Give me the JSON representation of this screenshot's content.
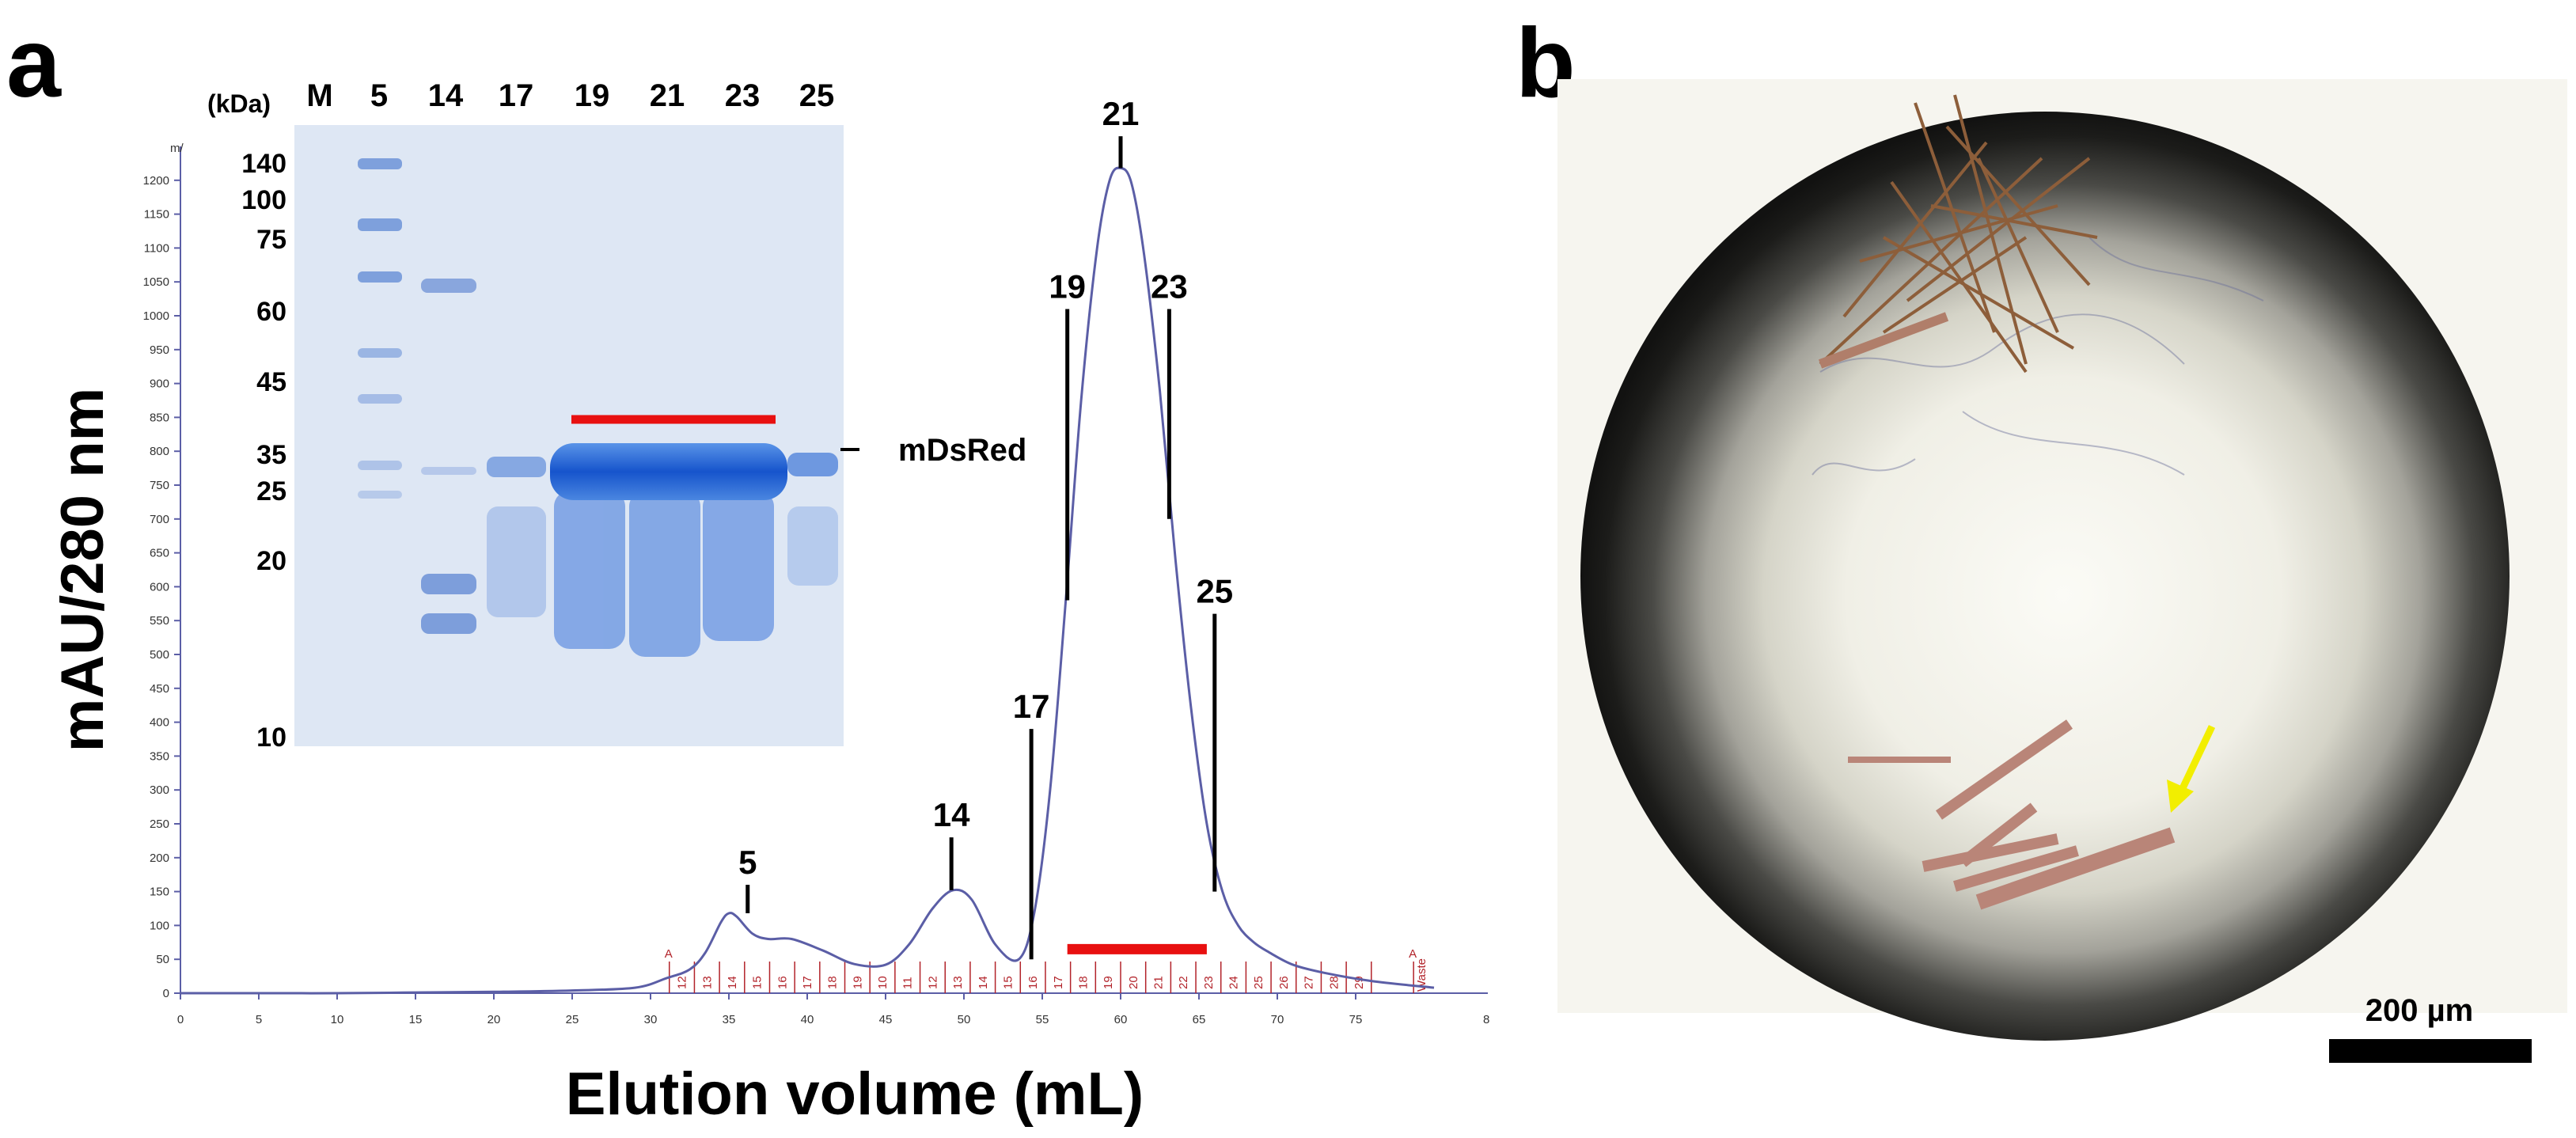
{
  "panels": {
    "a": {
      "letter": "a"
    },
    "b": {
      "letter": "b"
    }
  },
  "colors": {
    "trace": "#5b5ea6",
    "fraction_marks": "#b2232a",
    "red_bar": "#e81010",
    "gel_background": "#d9e3f1",
    "band": "#1e5fd0",
    "arrow": "#f2ee00"
  },
  "chart_data": {
    "type": "line",
    "title": "",
    "xlabel": "Elution volume (mL)",
    "ylabel": "mAU/280 nm",
    "x_axis_tail_label": "8",
    "xlim": [
      0,
      80
    ],
    "ylim": [
      0,
      1250
    ],
    "xticks": [
      0,
      5,
      10,
      15,
      20,
      25,
      30,
      35,
      40,
      45,
      50,
      55,
      60,
      65,
      70,
      75
    ],
    "yticks": [
      0,
      50,
      100,
      150,
      200,
      250,
      300,
      350,
      400,
      450,
      500,
      550,
      600,
      650,
      700,
      750,
      800,
      850,
      900,
      950,
      1000,
      1050,
      1100,
      1150,
      1200
    ],
    "y_axis_top_label": "m/",
    "series": [
      {
        "x": [
          0,
          5,
          10,
          15,
          20,
          25,
          29,
          31,
          32.5,
          33.5,
          34.5,
          35,
          35.5,
          36.5,
          37.5,
          39,
          41,
          43,
          45,
          46.5,
          48,
          49.3,
          50.5,
          52,
          53.5,
          54.5,
          55.5,
          56.5,
          57.5,
          58.5,
          59.3,
          60,
          60.7,
          61.5,
          62.5,
          63.5,
          64.5,
          65.5,
          66.5,
          67.5,
          68.5,
          69.5,
          71,
          73,
          76,
          80
        ],
        "y": [
          0,
          0,
          0,
          1,
          2,
          4,
          8,
          22,
          35,
          60,
          105,
          118,
          113,
          88,
          80,
          80,
          63,
          43,
          42,
          72,
          125,
          152,
          138,
          72,
          50,
          120,
          300,
          580,
          880,
          1100,
          1200,
          1218,
          1195,
          1090,
          890,
          640,
          420,
          250,
          150,
          100,
          75,
          60,
          42,
          30,
          18,
          8
        ]
      }
    ],
    "fractions": {
      "labels": [
        "12",
        "13",
        "14",
        "15",
        "16",
        "17",
        "18",
        "19",
        "10",
        "11",
        "12",
        "13",
        "14",
        "15",
        "16",
        "17",
        "18",
        "19",
        "20",
        "21",
        "22",
        "23",
        "24",
        "25",
        "26",
        "27",
        "28",
        "29"
      ],
      "start_ml": 31.2,
      "step_ml": 1.6,
      "waste_label": "Waste",
      "marker_left": "A",
      "marker_right": "A"
    },
    "peak_annotations": [
      {
        "label": "5",
        "x": 36.2,
        "y_top": 160,
        "y_bottom": 118
      },
      {
        "label": "14",
        "x": 49.2,
        "y_top": 230,
        "y_bottom": 152
      },
      {
        "label": "17",
        "x": 54.3,
        "y_top": 390,
        "y_bottom": 50
      },
      {
        "label": "19",
        "x": 56.6,
        "y_top": 1010,
        "y_bottom": 580
      },
      {
        "label": "21",
        "x": 60.0,
        "y_top": 1265,
        "y_bottom": 1218
      },
      {
        "label": "23",
        "x": 63.1,
        "y_top": 1010,
        "y_bottom": 700
      },
      {
        "label": "25",
        "x": 66.0,
        "y_top": 560,
        "y_bottom": 150
      }
    ],
    "pooled_bar": {
      "x_start": 56.6,
      "x_end": 65.5,
      "y": 65
    }
  },
  "gel": {
    "unit_label": "(kDa)",
    "lanes": [
      "M",
      "5",
      "14",
      "17",
      "19",
      "21",
      "23",
      "25"
    ],
    "markers": [
      "140",
      "100",
      "75",
      "60",
      "45",
      "35",
      "25",
      "20",
      "10"
    ],
    "protein_label": "mDsRed"
  },
  "photo": {
    "scale_bar_label": "200 µm"
  }
}
